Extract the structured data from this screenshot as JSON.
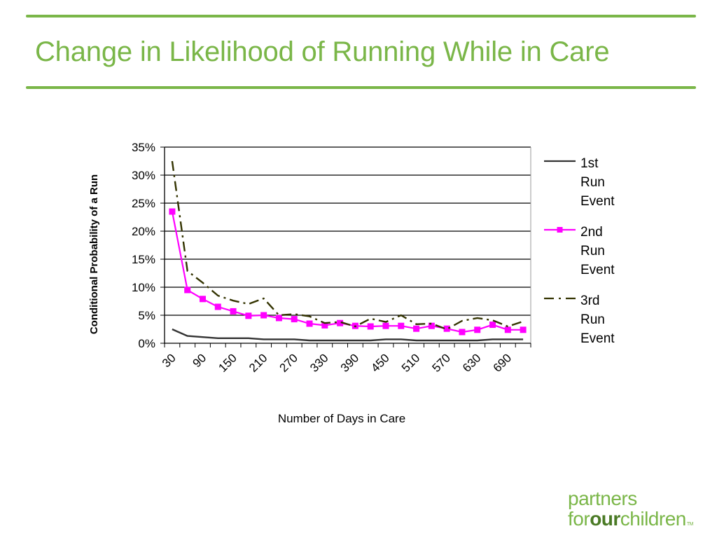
{
  "slide": {
    "title": "Change in Likelihood of Running While in Care",
    "accent_color": "#7ab648"
  },
  "logo": {
    "line1": "partners",
    "line2_pre": "for",
    "line2_bold": "our",
    "line2_post": "children",
    "trademark": "TM"
  },
  "chart_data": {
    "type": "line",
    "title": "",
    "xlabel": "Number of Days in Care",
    "ylabel": "Conditional Probability of a Run",
    "x": [
      30,
      60,
      90,
      120,
      150,
      180,
      210,
      240,
      270,
      300,
      330,
      360,
      390,
      420,
      450,
      480,
      510,
      540,
      570,
      600,
      630,
      660,
      690,
      720
    ],
    "x_tick_labels": [
      "30",
      "90",
      "150",
      "210",
      "270",
      "330",
      "390",
      "450",
      "510",
      "570",
      "630",
      "690"
    ],
    "y_tick_labels": [
      "0%",
      "5%",
      "10%",
      "15%",
      "20%",
      "25%",
      "30%",
      "35%"
    ],
    "ylim": [
      0,
      35
    ],
    "y_unit": "%",
    "grid": "horizontal",
    "legend_position": "right",
    "series": [
      {
        "name": "1st Run Event",
        "legend_lines": [
          "1st",
          "Run",
          "Event"
        ],
        "color": "#333333",
        "style": "solid",
        "marker": "none",
        "values": [
          2.5,
          1.3,
          1.1,
          0.9,
          0.9,
          0.9,
          0.7,
          0.7,
          0.7,
          0.5,
          0.5,
          0.5,
          0.5,
          0.5,
          0.7,
          0.7,
          0.5,
          0.5,
          0.5,
          0.5,
          0.5,
          0.7,
          0.7,
          0.7
        ]
      },
      {
        "name": "2nd Run Event",
        "legend_lines": [
          "2nd",
          "Run",
          "Event"
        ],
        "color": "#ff00ff",
        "style": "solid",
        "marker": "square",
        "values": [
          23.5,
          9.5,
          7.9,
          6.5,
          5.7,
          4.9,
          5.0,
          4.5,
          4.3,
          3.5,
          3.2,
          3.6,
          3.1,
          3.0,
          3.1,
          3.1,
          2.6,
          3.1,
          2.6,
          2.0,
          2.4,
          3.3,
          2.4,
          2.4
        ]
      },
      {
        "name": "3rd Run Event",
        "legend_lines": [
          "3rd",
          "Run",
          "Event"
        ],
        "color": "#333300",
        "style": "dash-dot",
        "marker": "none",
        "values": [
          32.5,
          12.9,
          10.8,
          8.5,
          7.6,
          7.0,
          8.0,
          5.0,
          5.2,
          4.8,
          3.6,
          3.8,
          3.0,
          4.4,
          3.8,
          5.0,
          3.4,
          3.5,
          2.5,
          4.0,
          4.5,
          4.1,
          3.0,
          3.9
        ]
      }
    ]
  }
}
